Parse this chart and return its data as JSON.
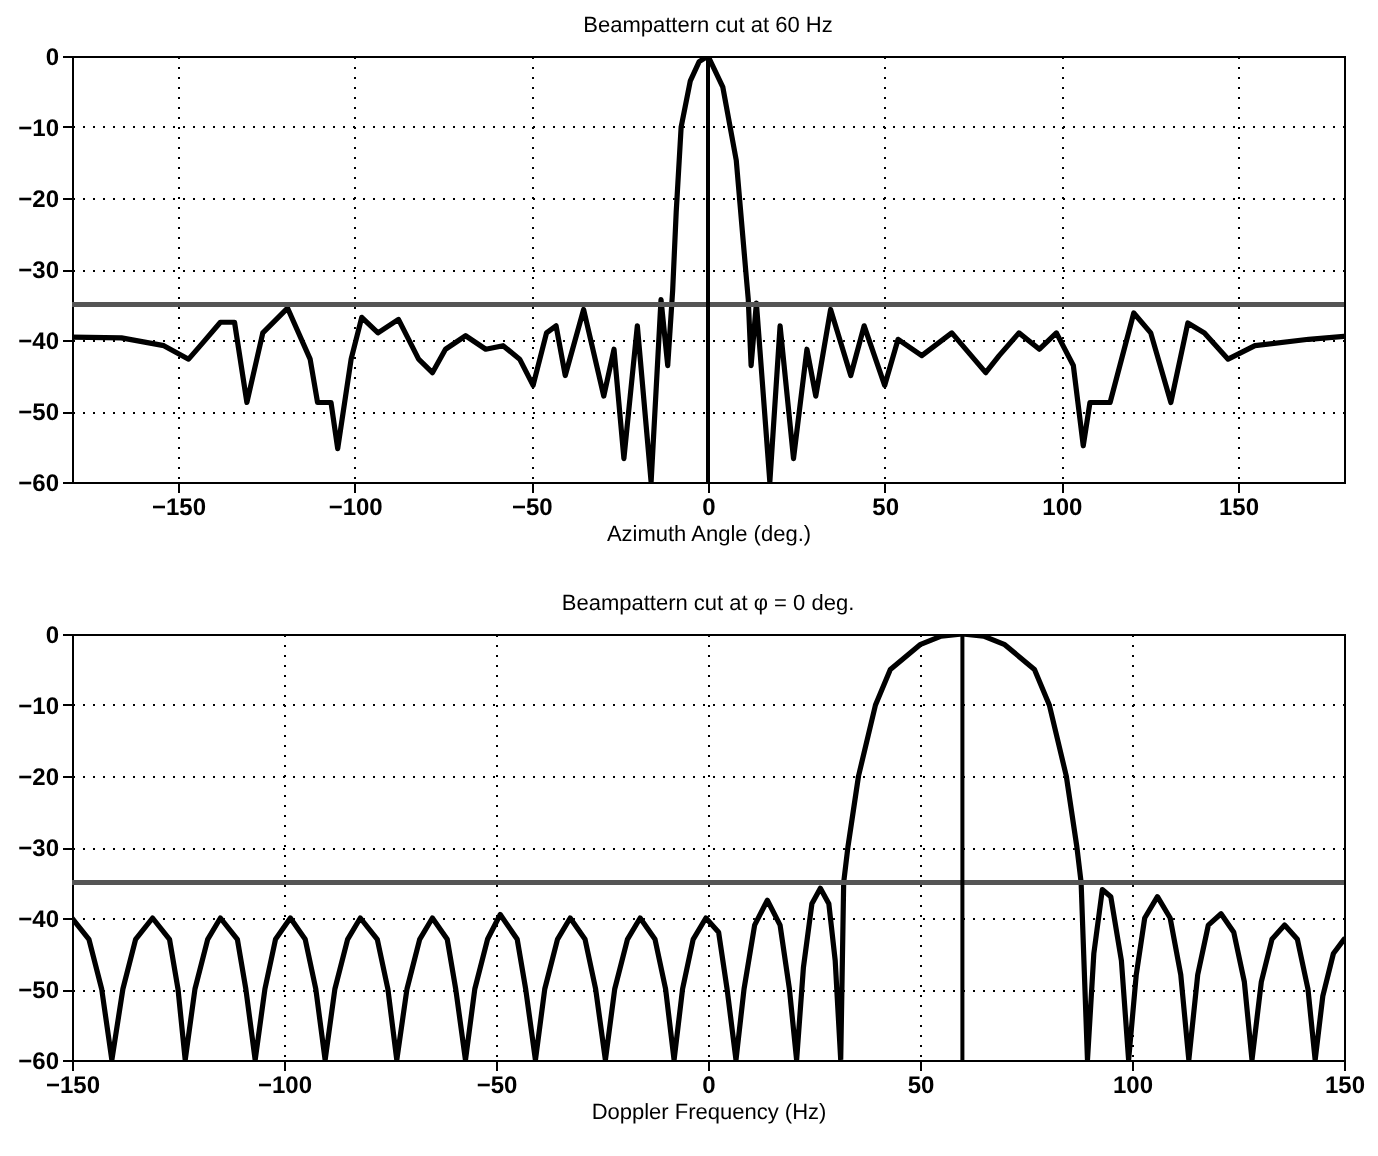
{
  "chart_data": [
    {
      "type": "line",
      "title": "Beampattern cut at 60 Hz",
      "xlabel": "Azimuth Angle (deg.)",
      "xlim": [
        -180,
        180
      ],
      "xticks": [
        -150,
        -100,
        -50,
        0,
        50,
        100,
        150
      ],
      "ylim": [
        -60,
        0
      ],
      "yticks": [
        -60,
        -50,
        -40,
        -30,
        -20,
        -10,
        0
      ],
      "grid": true,
      "x": [
        -180,
        -166,
        -154,
        -147,
        -143,
        -138,
        -134,
        -130.5,
        -126,
        -119,
        -112.6,
        -110.5,
        -106.7,
        -104.8,
        -101,
        -98,
        -93.4,
        -87.6,
        -81.9,
        -78,
        -74.3,
        -68.6,
        -62.9,
        -58,
        -53.3,
        -49.5,
        -45.7,
        -43,
        -40.4,
        -35.2,
        -29.5,
        -26.6,
        -23.8,
        -20,
        -16.1,
        -13.3,
        -11.4,
        -10,
        -9,
        -7.6,
        -5,
        -2.5,
        0,
        4.2,
        8,
        10.9,
        11.4,
        12.2,
        13.7,
        17.5,
        20.4,
        24.2,
        28,
        30.5,
        34.7,
        40.4,
        44.2,
        50,
        53.8,
        60.5,
        69,
        78.6,
        82.4,
        88,
        93.8,
        98.6,
        103.4,
        106.2,
        108.1,
        113.8,
        120.5,
        125.3,
        131,
        135.8,
        140.5,
        147.2,
        154.8,
        170,
        180
      ],
      "series": [
        {
          "color": "#000000",
          "values": [
            -39.6,
            -39.7,
            -40.8,
            -42.7,
            -40.4,
            -37.5,
            -37.5,
            -48.8,
            -39,
            -35.5,
            -42.7,
            -48.8,
            -48.8,
            -55.3,
            -42.7,
            -36.8,
            -39,
            -37.1,
            -42.7,
            -44.6,
            -41.3,
            -39.4,
            -41.3,
            -40.8,
            -42.7,
            -46.4,
            -39,
            -38,
            -45,
            -35.7,
            -47.9,
            -41.3,
            -56.7,
            -38,
            -60,
            -34.3,
            -43.6,
            -33,
            -22,
            -10,
            -3.5,
            -0.8,
            0,
            -4.4,
            -14.7,
            -31.5,
            -34.3,
            -43.6,
            -34.8,
            -60,
            -38,
            -56.7,
            -41.3,
            -47.9,
            -35.7,
            -45,
            -38,
            -46.4,
            -39.9,
            -42.2,
            -39,
            -44.6,
            -42.2,
            -39,
            -41.3,
            -39,
            -43.6,
            -54.9,
            -48.8,
            -48.8,
            -36.2,
            -39,
            -48.8,
            -37.6,
            -39,
            -42.7,
            -40.8,
            -39.9,
            -39.5
          ]
        }
      ],
      "ref_lines": [
        {
          "axis": "y",
          "value": -35,
          "color": "#555555"
        },
        {
          "axis": "x",
          "value": 0,
          "color": "#000000"
        }
      ]
    },
    {
      "type": "line",
      "title": "Beampattern cut at φ = 0 deg.",
      "xlabel": "Doppler Frequency (Hz)",
      "xlim": [
        -150,
        150
      ],
      "xticks": [
        -150,
        -100,
        -50,
        0,
        50,
        100,
        150
      ],
      "ylim": [
        -60,
        0
      ],
      "yticks": [
        -60,
        -50,
        -40,
        -30,
        -20,
        -10,
        0
      ],
      "grid": true,
      "x": [
        -150,
        -146,
        -143,
        -140.6,
        -138,
        -135,
        -131,
        -127,
        -125,
        -123.3,
        -121,
        -118,
        -115,
        -111,
        -109,
        -106.8,
        -104.5,
        -102,
        -98.5,
        -95,
        -92.5,
        -90.3,
        -88,
        -85,
        -82,
        -78,
        -75.5,
        -73.4,
        -71,
        -68,
        -65,
        -61.5,
        -59.5,
        -57.2,
        -55,
        -52,
        -49,
        -45,
        -43,
        -40.7,
        -38.5,
        -35.5,
        -32.5,
        -29,
        -26.5,
        -24.2,
        -22,
        -19,
        -16,
        -12.5,
        -10,
        -8,
        -6,
        -3.5,
        -0.5,
        2.5,
        4.5,
        6.6,
        8.5,
        11,
        14,
        17,
        19.2,
        20.9,
        22.5,
        24.5,
        26.5,
        28.5,
        30,
        31.3,
        32,
        33,
        35.5,
        39.5,
        43,
        50,
        55,
        60,
        65,
        70,
        77,
        80.5,
        84.5,
        87,
        88,
        89.5,
        91,
        93,
        95,
        97.5,
        99.2,
        101,
        103,
        106,
        109,
        111.5,
        113.4,
        115.5,
        118,
        121,
        124,
        126.5,
        128.3,
        130.5,
        133,
        136,
        139,
        141.5,
        143.2,
        145,
        147.5,
        150
      ],
      "series": [
        {
          "color": "#000000",
          "values": [
            -40,
            -43,
            -50,
            -60,
            -50,
            -43,
            -40,
            -43,
            -50,
            -60,
            -50,
            -43,
            -40,
            -43,
            -50,
            -60,
            -50,
            -43,
            -40,
            -43,
            -50,
            -60,
            -50,
            -43,
            -40,
            -43,
            -50,
            -60,
            -50,
            -43,
            -40,
            -43,
            -50,
            -60,
            -50,
            -43,
            -39.5,
            -43,
            -50,
            -60,
            -50,
            -43,
            -40,
            -43,
            -50,
            -60,
            -50,
            -43,
            -40,
            -43,
            -50,
            -60,
            -50,
            -43,
            -40,
            -42,
            -50,
            -60,
            -50,
            -41,
            -37.5,
            -41,
            -50,
            -60,
            -47,
            -38,
            -35.8,
            -38,
            -46,
            -60,
            -35,
            -30,
            -20,
            -10,
            -5,
            -1.5,
            -0.3,
            0,
            -0.3,
            -1.5,
            -5,
            -10,
            -20,
            -30,
            -35,
            -60,
            -45,
            -36,
            -37,
            -46,
            -60,
            -48,
            -40,
            -37,
            -40,
            -48,
            -60,
            -48,
            -41,
            -39.4,
            -42,
            -49,
            -60,
            -49,
            -43,
            -41,
            -43,
            -50,
            -60,
            -51,
            -45,
            -43
          ]
        }
      ],
      "ref_lines": [
        {
          "axis": "y",
          "value": -35,
          "color": "#555555"
        },
        {
          "axis": "x",
          "value": 60,
          "color": "#000000"
        }
      ]
    }
  ]
}
